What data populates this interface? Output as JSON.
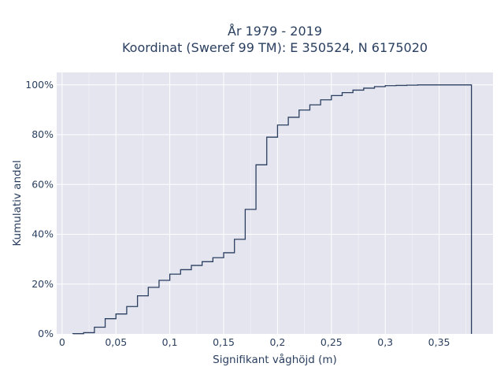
{
  "chart_data": {
    "type": "line",
    "line_shape": "step",
    "title": [
      "År 1979 - 2019",
      "Koordinat (Sweref 99 TM): E 350524, N 6175020"
    ],
    "xlabel": "Signifikant våghöjd (m)",
    "ylabel": "Kumulativ andel",
    "xlim": [
      -0.005,
      0.4
    ],
    "ylim": [
      0,
      1.05
    ],
    "grid": true,
    "x_ticks": [
      0,
      0.05,
      0.1,
      0.15,
      0.2,
      0.25,
      0.3,
      0.35
    ],
    "x_tick_labels": [
      "0",
      "0,05",
      "0,1",
      "0,15",
      "0,2",
      "0,25",
      "0,3",
      "0,35"
    ],
    "y_ticks": [
      0,
      0.2,
      0.4,
      0.6,
      0.8,
      1.0
    ],
    "y_tick_labels": [
      "0%",
      "20%",
      "40%",
      "60%",
      "80%",
      "100%"
    ],
    "series": [
      {
        "color": "#2a3f5f",
        "x": [
          0.01,
          0.02,
          0.03,
          0.04,
          0.05,
          0.06,
          0.07,
          0.08,
          0.09,
          0.1,
          0.11,
          0.12,
          0.13,
          0.14,
          0.15,
          0.16,
          0.17,
          0.18,
          0.19,
          0.2,
          0.21,
          0.22,
          0.23,
          0.24,
          0.25,
          0.26,
          0.27,
          0.28,
          0.29,
          0.3,
          0.31,
          0.32,
          0.33,
          0.34,
          0.35,
          0.36,
          0.37,
          0.38
        ],
        "y": [
          0.001,
          0.005,
          0.027,
          0.061,
          0.08,
          0.11,
          0.153,
          0.187,
          0.215,
          0.24,
          0.258,
          0.275,
          0.29,
          0.306,
          0.326,
          0.38,
          0.5,
          0.679,
          0.79,
          0.839,
          0.87,
          0.899,
          0.92,
          0.94,
          0.957,
          0.969,
          0.979,
          0.987,
          0.993,
          0.997,
          0.998,
          0.999,
          1.0,
          1.0,
          1.0,
          1.0,
          1.0,
          1.0
        ]
      }
    ]
  }
}
